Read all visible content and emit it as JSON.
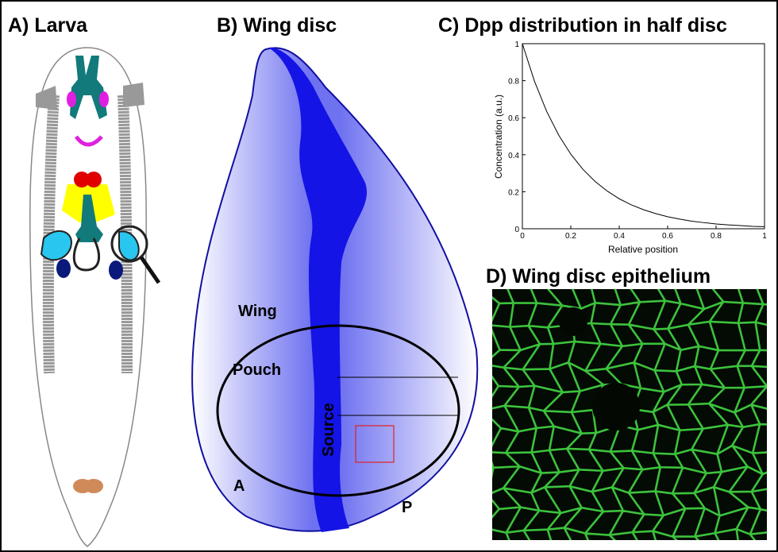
{
  "larva": {
    "title": "A) Larva"
  },
  "wing_disc": {
    "title": "B) Wing disc",
    "labels": {
      "wing": "Wing",
      "pouch": "Pouch",
      "source": "Source",
      "anterior": "A",
      "posterior": "P"
    }
  },
  "chart_data": {
    "type": "line",
    "title": "C) Dpp distribution in half disc",
    "x_label": "Relative position",
    "y_label": "Concentration (a.u.)",
    "x": [
      0,
      0.05,
      0.1,
      0.15,
      0.2,
      0.25,
      0.3,
      0.35,
      0.4,
      0.45,
      0.5,
      0.55,
      0.6,
      0.65,
      0.7,
      0.75,
      0.8,
      0.85,
      0.9,
      0.95,
      1
    ],
    "values": [
      1,
      0.797,
      0.635,
      0.506,
      0.403,
      0.321,
      0.256,
      0.204,
      0.162,
      0.129,
      0.103,
      0.082,
      0.065,
      0.052,
      0.041,
      0.033,
      0.026,
      0.021,
      0.017,
      0.013,
      0.011
    ],
    "color": "#000000",
    "xlim": [
      0,
      1
    ],
    "ylim": [
      0,
      1
    ],
    "xticks": [
      0,
      0.2,
      0.4,
      0.6,
      0.8,
      1
    ],
    "yticks": [
      0,
      0.2,
      0.4,
      0.6,
      0.8,
      1
    ]
  },
  "epithelium": {
    "title": "D) Wing disc epithelium"
  }
}
